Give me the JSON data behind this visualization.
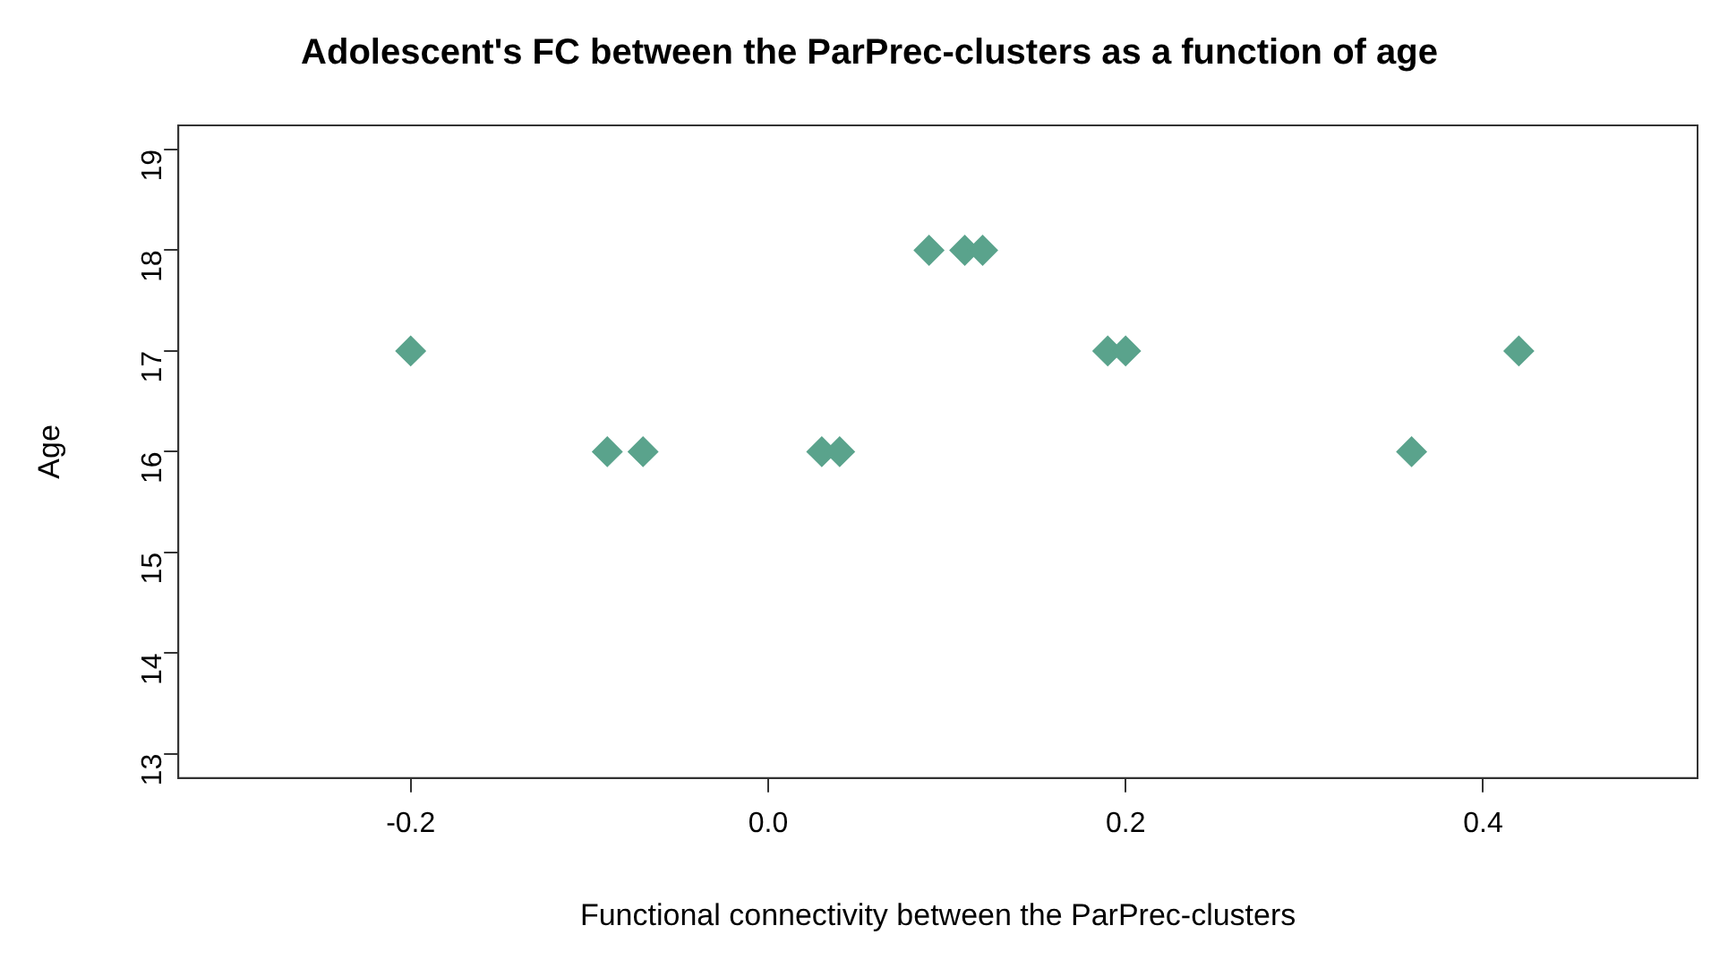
{
  "chart_data": {
    "type": "scatter",
    "title": "Adolescent's FC between the ParPrec-clusters as a function of age",
    "xlabel": "Functional connectivity between the ParPrec-clusters",
    "ylabel": "Age",
    "series": [
      {
        "color": "#5aa38c",
        "x": [
          -0.2,
          -0.09,
          -0.07,
          0.03,
          0.04,
          0.09,
          0.11,
          0.12,
          0.19,
          0.2,
          0.36,
          0.42
        ],
        "values": [
          17,
          16,
          16,
          16,
          16,
          18,
          18,
          18,
          17,
          17,
          16,
          17
        ]
      }
    ],
    "xlim": [
      -0.33,
      0.52
    ],
    "xticks": [
      {
        "value": -0.2,
        "label": "-0.2"
      },
      {
        "value": 0,
        "label": "0.0"
      },
      {
        "value": 0.2,
        "label": "0.2"
      },
      {
        "value": 0.4,
        "label": "0.4"
      }
    ],
    "ylim": [
      12.76,
      19.24
    ],
    "yticks": [
      13,
      14,
      15,
      16,
      17,
      18,
      19
    ],
    "marker": "diamond",
    "grid": false,
    "legend": false
  }
}
